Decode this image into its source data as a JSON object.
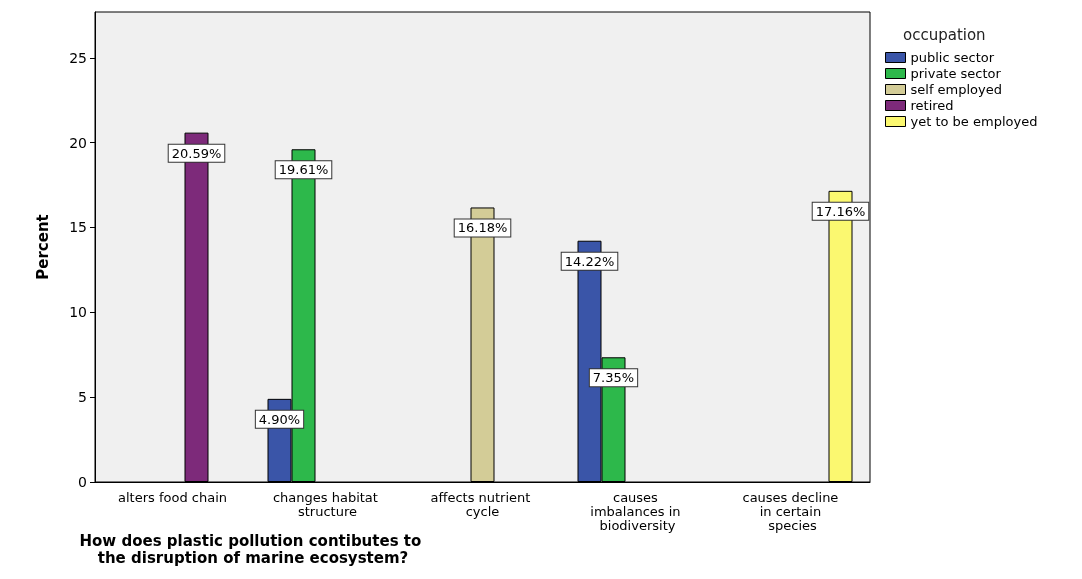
{
  "chart_data": {
    "type": "bar",
    "xlabel": "How does plastic pollution contibutes to the disruption of marine ecosystem?",
    "ylabel": "Percent",
    "legend_title": "occupation",
    "categories": [
      "alters food chain",
      "changes habitat structure",
      "affects nutrient cycle",
      "causes imbalances in biodiversity",
      "causes decline in certain species"
    ],
    "series": [
      {
        "name": "public sector",
        "color": "#3a55a8",
        "values": [
          null,
          4.9,
          null,
          14.22,
          null
        ],
        "value_labels": [
          null,
          "4.90%",
          null,
          "14.22%",
          null
        ]
      },
      {
        "name": "private sector",
        "color": "#2db84b",
        "values": [
          null,
          19.61,
          null,
          7.35,
          null
        ],
        "value_labels": [
          null,
          "19.61%",
          null,
          "7.35%",
          null
        ]
      },
      {
        "name": "self employed",
        "color": "#d3cc97",
        "values": [
          null,
          null,
          16.18,
          null,
          null
        ],
        "value_labels": [
          null,
          null,
          "16.18%",
          null,
          null
        ]
      },
      {
        "name": "retired",
        "color": "#7d2a7a",
        "values": [
          20.59,
          null,
          null,
          null,
          null
        ],
        "value_labels": [
          "20.59%",
          null,
          null,
          null,
          null
        ]
      },
      {
        "name": "yet to be employed",
        "color": "#fbf870",
        "values": [
          null,
          null,
          null,
          null,
          17.16
        ],
        "value_labels": [
          null,
          null,
          null,
          null,
          "17.16%"
        ]
      }
    ],
    "ylim": [
      0,
      27.7
    ],
    "yticks": [
      0,
      5,
      10,
      15,
      20,
      25
    ],
    "grid": false,
    "legend": "top right"
  }
}
